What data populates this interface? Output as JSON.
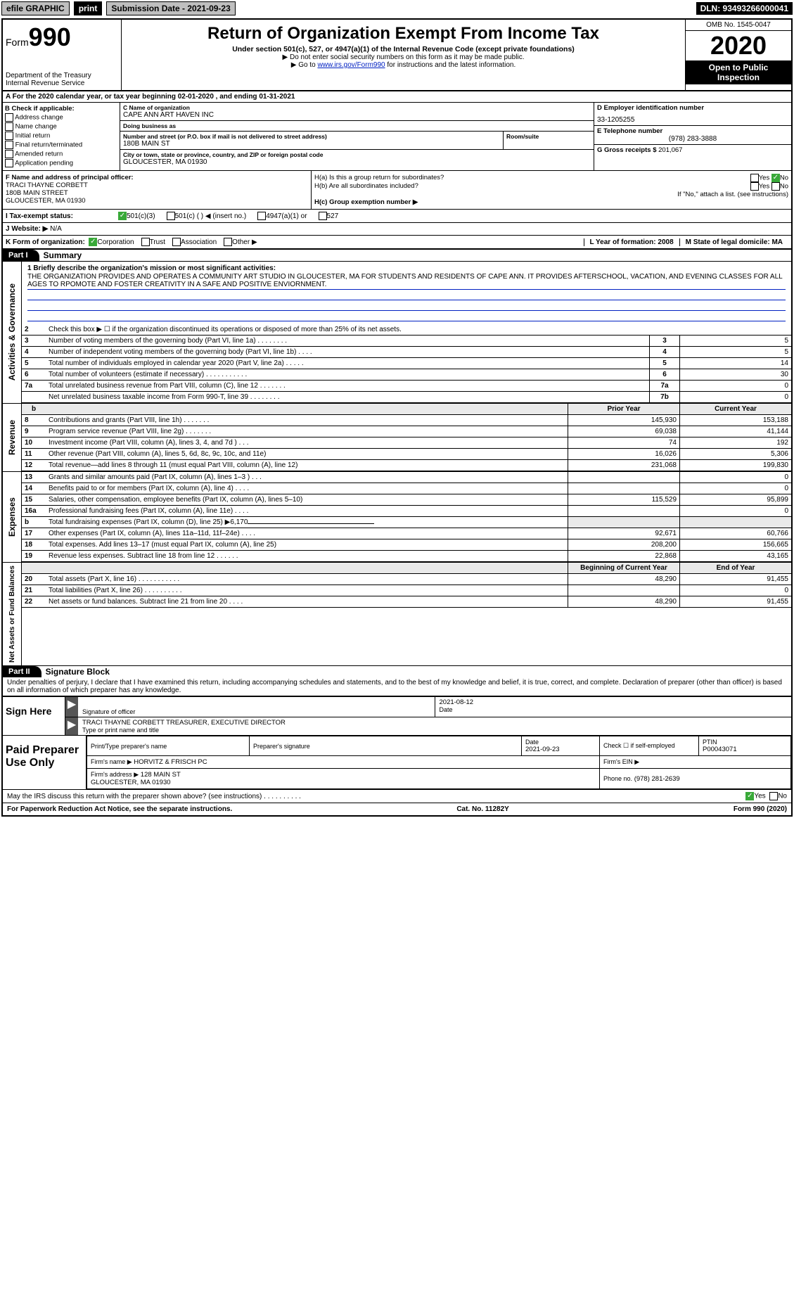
{
  "colors": {
    "link": "#0020c2",
    "check_green": "#39a939",
    "black": "#000000",
    "white": "#ffffff",
    "header_grey": "#bfbfbf",
    "row_grey": "#eaeaea"
  },
  "topbar": {
    "efile": "efile GRAPHIC",
    "print": "print",
    "sub_date_label": "Submission Date - 2021-09-23",
    "dln": "DLN: 93493266000041"
  },
  "header": {
    "form_prefix": "Form",
    "form_number": "990",
    "dept": "Department of the Treasury\nInternal Revenue Service",
    "title": "Return of Organization Exempt From Income Tax",
    "subtitle": "Under section 501(c), 527, or 4947(a)(1) of the Internal Revenue Code (except private foundations)",
    "note1": "▶ Do not enter social security numbers on this form as it may be made public.",
    "note2a": "▶ Go to ",
    "note2_link": "www.irs.gov/Form990",
    "note2b": " for instructions and the latest information.",
    "omb": "OMB No. 1545-0047",
    "year": "2020",
    "inspection": "Open to Public Inspection"
  },
  "rowA": "A  For the 2020 calendar year, or tax year beginning 02-01-2020    , and ending 01-31-2021",
  "boxB": {
    "label": "B Check if applicable:",
    "items": [
      "Address change",
      "Name change",
      "Initial return",
      "Final return/terminated",
      "Amended return",
      "Application pending"
    ]
  },
  "boxC": {
    "name_label": "C Name of organization",
    "name": "CAPE ANN ART HAVEN INC",
    "dba_label": "Doing business as",
    "dba": "",
    "addr_label": "Number and street (or P.O. box if mail is not delivered to street address)",
    "room_label": "Room/suite",
    "addr": "180B MAIN ST",
    "city_label": "City or town, state or province, country, and ZIP or foreign postal code",
    "city": "GLOUCESTER, MA  01930"
  },
  "boxD": {
    "label": "D Employer identification number",
    "value": "33-1205255"
  },
  "boxE": {
    "label": "E Telephone number",
    "value": "(978) 283-3888"
  },
  "boxG": {
    "label": "G Gross receipts $",
    "value": "201,067"
  },
  "boxF": {
    "label": "F  Name and address of principal officer:",
    "name": "TRACI THAYNE CORBETT",
    "addr1": "180B MAIN STREET",
    "addr2": "GLOUCESTER, MA  01930"
  },
  "boxH": {
    "a_label": "H(a)  Is this a group return for subordinates?",
    "a_yes": "Yes",
    "a_no": "No",
    "b_label": "H(b)  Are all subordinates included?",
    "b_yes": "Yes",
    "b_no": "No",
    "b_note": "If \"No,\" attach a list. (see instructions)",
    "c_label": "H(c)  Group exemption number ▶",
    "c_val": ""
  },
  "rowI": {
    "label": "I  Tax-exempt status:",
    "opts": [
      "501(c)(3)",
      "501(c) (  ) ◀ (insert no.)",
      "4947(a)(1) or",
      "527"
    ]
  },
  "rowJ": {
    "label": "J  Website: ▶",
    "value": "N/A"
  },
  "rowK": {
    "label": "K Form of organization:",
    "opts": [
      "Corporation",
      "Trust",
      "Association",
      "Other ▶"
    ],
    "L": "L Year of formation: 2008",
    "M": "M State of legal domicile: MA"
  },
  "part1": {
    "tab": "Part I",
    "title": "Summary",
    "side_governance": "Activities & Governance",
    "side_revenue": "Revenue",
    "side_expenses": "Expenses",
    "side_netassets": "Net Assets or Fund Balances",
    "line1_label": "1  Briefly describe the organization's mission or most significant activities:",
    "line1_text": "THE ORGANIZATION PROVIDES AND OPERATES A COMMUNITY ART STUDIO IN GLOUCESTER, MA FOR STUDENTS AND RESIDENTS OF CAPE ANN. IT PROVIDES AFTERSCHOOL, VACATION, AND EVENING CLASSES FOR ALL AGES TO RPOMOTE AND FOSTER CREATIVITY IN A SAFE AND POSITIVE ENVIORNMENT.",
    "gov_rows": [
      {
        "n": "2",
        "desc": "Check this box ▶ ☐ if the organization discontinued its operations or disposed of more than 25% of its net assets.",
        "box": "",
        "v": ""
      },
      {
        "n": "3",
        "desc": "Number of voting members of the governing body (Part VI, line 1a)  .   .   .   .   .   .   .   .",
        "box": "3",
        "v": "5"
      },
      {
        "n": "4",
        "desc": "Number of independent voting members of the governing body (Part VI, line 1b)  .   .   .   .",
        "box": "4",
        "v": "5"
      },
      {
        "n": "5",
        "desc": "Total number of individuals employed in calendar year 2020 (Part V, line 2a)  .   .   .   .   .",
        "box": "5",
        "v": "14"
      },
      {
        "n": "6",
        "desc": "Total number of volunteers (estimate if necessary)  .   .   .   .   .   .   .   .   .   .   .",
        "box": "6",
        "v": "30"
      },
      {
        "n": "7a",
        "desc": "Total unrelated business revenue from Part VIII, column (C), line 12  .   .   .   .   .   .   .",
        "box": "7a",
        "v": "0"
      },
      {
        "n": "",
        "desc": "Net unrelated business taxable income from Form 990-T, line 39  .   .   .   .   .   .   .   .",
        "box": "7b",
        "v": "0"
      }
    ],
    "prior_label": "Prior Year",
    "current_label": "Current Year",
    "rev_rows": [
      {
        "n": "8",
        "desc": "Contributions and grants (Part VIII, line 1h)  .   .   .   .   .   .   .",
        "py": "145,930",
        "cy": "153,188"
      },
      {
        "n": "9",
        "desc": "Program service revenue (Part VIII, line 2g)  .   .   .   .   .   .   .",
        "py": "69,038",
        "cy": "41,144"
      },
      {
        "n": "10",
        "desc": "Investment income (Part VIII, column (A), lines 3, 4, and 7d )  .   .   .",
        "py": "74",
        "cy": "192"
      },
      {
        "n": "11",
        "desc": "Other revenue (Part VIII, column (A), lines 5, 6d, 8c, 9c, 10c, and 11e)",
        "py": "16,026",
        "cy": "5,306"
      },
      {
        "n": "12",
        "desc": "Total revenue—add lines 8 through 11 (must equal Part VIII, column (A), line 12)",
        "py": "231,068",
        "cy": "199,830"
      }
    ],
    "exp_rows": [
      {
        "n": "13",
        "desc": "Grants and similar amounts paid (Part IX, column (A), lines 1–3 )  .   .   .",
        "py": "",
        "cy": "0"
      },
      {
        "n": "14",
        "desc": "Benefits paid to or for members (Part IX, column (A), line 4)  .   .   .   .",
        "py": "",
        "cy": "0"
      },
      {
        "n": "15",
        "desc": "Salaries, other compensation, employee benefits (Part IX, column (A), lines 5–10)",
        "py": "115,529",
        "cy": "95,899"
      },
      {
        "n": "16a",
        "desc": "Professional fundraising fees (Part IX, column (A), line 11e)  .   .   .   .",
        "py": "",
        "cy": "0"
      },
      {
        "n": "b",
        "desc": "Total fundraising expenses (Part IX, column (D), line 25) ▶6,170",
        "py": null,
        "cy": null
      },
      {
        "n": "17",
        "desc": "Other expenses (Part IX, column (A), lines 11a–11d, 11f–24e)  .   .   .   .",
        "py": "92,671",
        "cy": "60,766"
      },
      {
        "n": "18",
        "desc": "Total expenses. Add lines 13–17 (must equal Part IX, column (A), line 25)",
        "py": "208,200",
        "cy": "156,665"
      },
      {
        "n": "19",
        "desc": "Revenue less expenses. Subtract line 18 from line 12  .   .   .   .   .   .",
        "py": "22,868",
        "cy": "43,165"
      }
    ],
    "begin_label": "Beginning of Current Year",
    "end_label": "End of Year",
    "net_rows": [
      {
        "n": "20",
        "desc": "Total assets (Part X, line 16)  .   .   .   .   .   .   .   .   .   .   .",
        "py": "48,290",
        "cy": "91,455"
      },
      {
        "n": "21",
        "desc": "Total liabilities (Part X, line 26)  .   .   .   .   .   .   .   .   .   .",
        "py": "",
        "cy": "0"
      },
      {
        "n": "22",
        "desc": "Net assets or fund balances. Subtract line 21 from line 20  .   .   .   .",
        "py": "48,290",
        "cy": "91,455"
      }
    ]
  },
  "part2": {
    "tab": "Part II",
    "title": "Signature Block",
    "jurat": "Under penalties of perjury, I declare that I have examined this return, including accompanying schedules and statements, and to the best of my knowledge and belief, it is true, correct, and complete. Declaration of preparer (other than officer) is based on all information of which preparer has any knowledge.",
    "sign_here": "Sign Here",
    "sig_officer_label": "Signature of officer",
    "sig_date": "2021-08-12",
    "date_label": "Date",
    "sig_name": "TRACI THAYNE CORBETT  TREASURER, EXECUTIVE DIRECTOR",
    "sig_name_label": "Type or print name and title",
    "paid_label": "Paid Preparer Use Only",
    "prep_name_label": "Print/Type preparer's name",
    "prep_name": "",
    "prep_sig_label": "Preparer's signature",
    "prep_date_label": "Date",
    "prep_date": "2021-09-23",
    "check_self": "Check ☐ if self-employed",
    "ptin_label": "PTIN",
    "ptin": "P00043071",
    "firm_name_label": "Firm's name    ▶",
    "firm_name": "HORVITZ & FRISCH PC",
    "firm_ein_label": "Firm's EIN ▶",
    "firm_ein": "",
    "firm_addr_label": "Firm's address ▶",
    "firm_addr": "128 MAIN ST\nGLOUCESTER, MA  01930",
    "firm_phone_label": "Phone no.",
    "firm_phone": "(978) 281-2639"
  },
  "footer": {
    "may_irs": "May the IRS discuss this return with the preparer shown above? (see instructions)  .   .   .   .   .   .   .   .   .   .",
    "yes": "Yes",
    "no": "No",
    "paperwork": "For Paperwork Reduction Act Notice, see the separate instructions.",
    "cat": "Cat. No. 11282Y",
    "form": "Form 990 (2020)"
  }
}
